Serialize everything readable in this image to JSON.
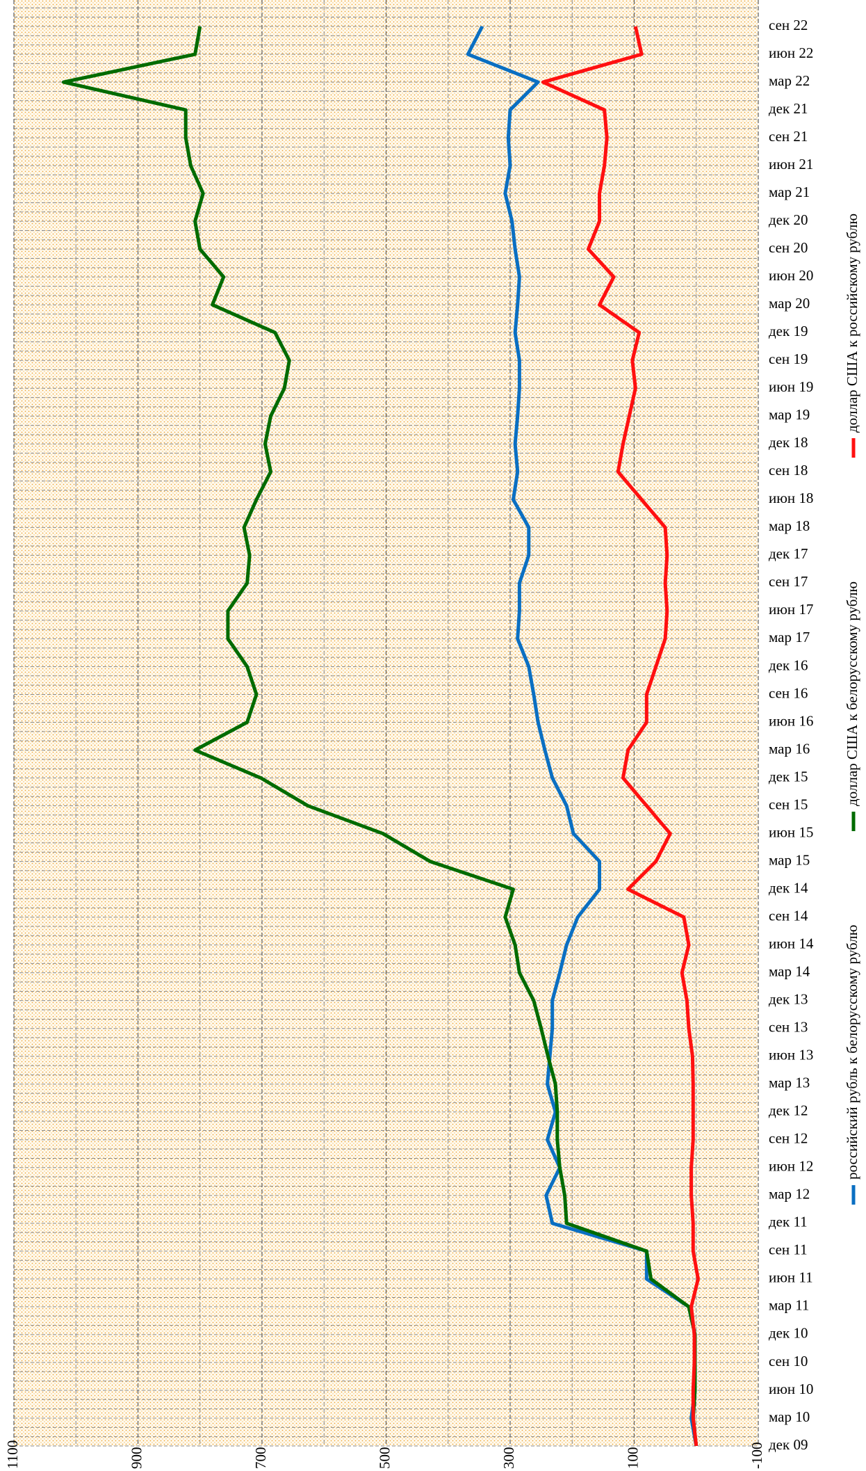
{
  "chart_data": {
    "type": "line",
    "orientation": "horizontal",
    "categories": [
      "дек 09",
      "мар 10",
      "июн 10",
      "сен 10",
      "дек 10",
      "мар 11",
      "июн 11",
      "сен 11",
      "дек 11",
      "мар 12",
      "июн 12",
      "сен 12",
      "дек 12",
      "мар 13",
      "июн 13",
      "сен 13",
      "дек 13",
      "мар 14",
      "июн 14",
      "сен 14",
      "дек 14",
      "мар 15",
      "июн 15",
      "сен 15",
      "дек 15",
      "мар 16",
      "июн 16",
      "сен 16",
      "дек 16",
      "мар 17",
      "июн 17",
      "сен 17",
      "дек 17",
      "мар 18",
      "июн 18",
      "сен 18",
      "дек 18",
      "мар 19",
      "июн 19",
      "сен 19",
      "дек 19",
      "мар 20",
      "июн 20",
      "сен 20",
      "дек 20",
      "мар 21",
      "июн 21",
      "сен 21",
      "дек 21",
      "мар 22",
      "июн 22",
      "сен 22"
    ],
    "series": [
      {
        "name": "российский рубль к белорусскому рублю",
        "color": "#0a6fc2",
        "values": [
          0,
          8,
          2,
          2,
          2,
          12,
          80,
          80,
          232,
          242,
          220,
          240,
          227,
          240,
          236,
          232,
          232,
          220,
          209,
          191,
          156,
          156,
          198,
          209,
          232,
          244,
          255,
          262,
          270,
          288,
          285,
          285,
          270,
          270,
          295,
          288,
          292,
          288,
          285,
          285,
          292,
          288,
          285,
          292,
          297,
          308,
          300,
          303,
          300,
          255,
          368,
          345
        ]
      },
      {
        "name": "доллар США к белорусскому рублю",
        "color": "#006b00",
        "values": [
          0,
          5,
          2,
          2,
          2,
          12,
          73,
          80,
          209,
          212,
          220,
          224,
          224,
          227,
          239,
          250,
          262,
          285,
          292,
          308,
          295,
          429,
          505,
          626,
          702,
          808,
          724,
          709,
          724,
          755,
          755,
          724,
          720,
          729,
          709,
          686,
          695,
          686,
          664,
          656,
          679,
          780,
          762,
          800,
          808,
          795,
          815,
          823,
          823,
          1020,
          808,
          800
        ]
      },
      {
        "name": "доллар США к российскому рублю",
        "color": "#ff1010",
        "values": [
          0,
          5,
          5,
          3,
          3,
          8,
          -3,
          5,
          5,
          8,
          8,
          5,
          5,
          5,
          6,
          12,
          15,
          23,
          12,
          20,
          110,
          65,
          42,
          80,
          118,
          110,
          80,
          80,
          65,
          50,
          47,
          50,
          47,
          50,
          88,
          126,
          118,
          108,
          98,
          103,
          92,
          156,
          133,
          174,
          156,
          156,
          148,
          144,
          148,
          247,
          88,
          98
        ]
      }
    ],
    "xlim": [
      1100,
      -100
    ],
    "xticks": [
      1100,
      900,
      700,
      500,
      300,
      100,
      -100
    ],
    "grid": true
  }
}
